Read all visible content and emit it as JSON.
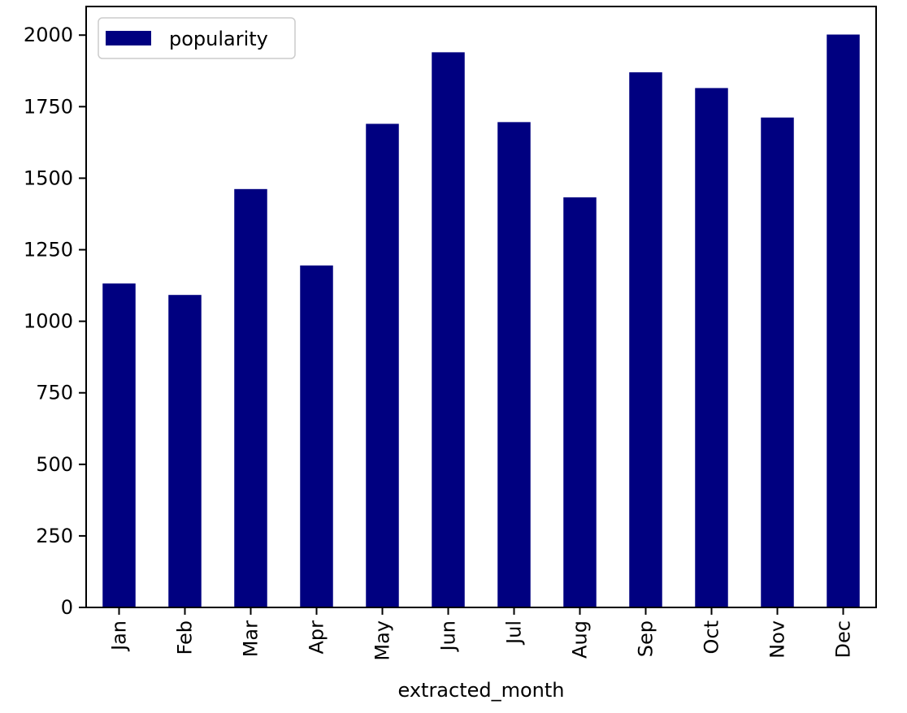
{
  "chart_data": {
    "type": "bar",
    "categories": [
      "Jan",
      "Feb",
      "Mar",
      "Apr",
      "May",
      "Jun",
      "Jul",
      "Aug",
      "Sep",
      "Oct",
      "Nov",
      "Dec"
    ],
    "series": [
      {
        "name": "popularity",
        "color": "#000080",
        "values": [
          1132,
          1092,
          1462,
          1195,
          1690,
          1940,
          1696,
          1433,
          1870,
          1815,
          1712,
          2002
        ]
      }
    ],
    "title": "",
    "xlabel": "extracted_month",
    "ylabel": "",
    "ylim": [
      0,
      2100
    ],
    "yticks": [
      0,
      250,
      500,
      750,
      1000,
      1250,
      1500,
      1750,
      2000
    ],
    "grid": false,
    "legend": {
      "placement": "top-left",
      "entries": [
        "popularity"
      ]
    }
  }
}
